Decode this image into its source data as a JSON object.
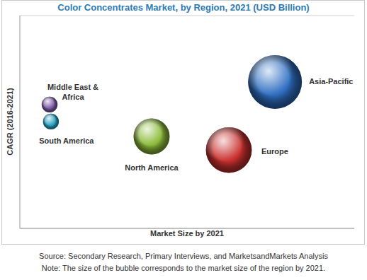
{
  "chart_data": {
    "type": "bubble",
    "title": "Color Concentrates Market, by Region, 2021 (USD Billion)",
    "x_label": "Market Size by 2021",
    "y_label": "CAGR (2016-2021)",
    "xlim": [
      0,
      10
    ],
    "xticks": [
      0,
      10
    ],
    "ylim": [
      0,
      5
    ],
    "yticks": [
      0,
      1,
      2,
      3,
      4,
      5
    ],
    "grid": true,
    "tick_labels": false,
    "series": [
      {
        "name": "Middle East & Africa",
        "color": "#7d5aa8",
        "x": [
          0.89
        ],
        "y": [
          2.91
        ],
        "size": [
          0.25
        ]
      },
      {
        "name": "South America",
        "color": "#2aa3c4",
        "x": [
          0.93
        ],
        "y": [
          2.51
        ],
        "size": [
          0.25
        ]
      },
      {
        "name": "North America",
        "color": "#8cbb3a",
        "x": [
          3.94
        ],
        "y": [
          2.16
        ],
        "size": [
          1.3
        ]
      },
      {
        "name": "Europe",
        "color": "#c9302e",
        "x": [
          6.25
        ],
        "y": [
          1.84
        ],
        "size": [
          2.1
        ]
      },
      {
        "name": "Asia-Pacific",
        "color": "#2f6fc2",
        "x": [
          7.63
        ],
        "y": [
          3.44
        ],
        "size": [
          2.9
        ]
      }
    ],
    "annotations": [
      "Source: Secondary Research, Primary Interviews, and MarketsandMarkets Analysis",
      "Note: The size of the bubble corresponds to the market size of the region by 2021."
    ]
  }
}
